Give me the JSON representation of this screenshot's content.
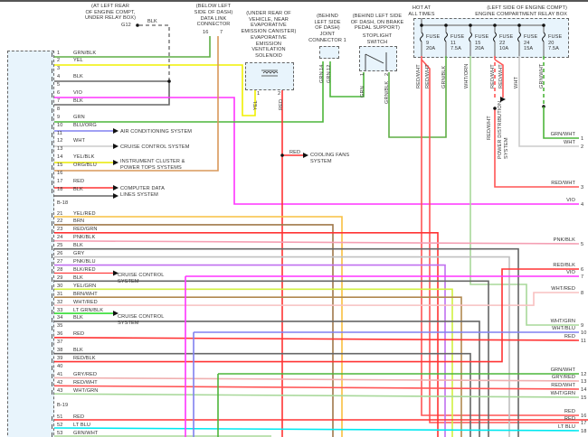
{
  "colors": {
    "GRN": "#4cb53a",
    "GRNBLK": "#5fae45",
    "YEL": "#f0f000",
    "BLK": "#666666",
    "VIO": "#ff33ff",
    "RED": "#ff3333",
    "ORG": "#e8914a",
    "WHT": "#cccccc",
    "BLU": "#8080f0",
    "PNK": "#f4a0b4",
    "BRN": "#a0784a",
    "GRY": "#c0c0c0",
    "LTGRN": "#33dd33",
    "LTBLU": "#00e8f0",
    "WHTGRN": "#a8d89a",
    "REDWHT": "#ff5555",
    "YELRED": "#f8c040",
    "PNKBLU": "#c070f0",
    "YELGRN": "#d0f040",
    "BRNWHT": "#b08850",
    "WHTRED": "#f8c0c0",
    "GRYRED": "#f0b0b0",
    "YELBLK": "#e8e800",
    "ORGBLU": "#d8985a"
  },
  "ground": {
    "location": [
      "(AT LEFT REAR",
      "OF ENGINE COMPT,",
      "UNDER RELAY BOX)"
    ],
    "id": "G12",
    "wire": "BLK"
  },
  "dlc": {
    "location": [
      "(BELOW LEFT",
      "SIDE OF DASH)"
    ],
    "name": [
      "DATA LINK",
      "CONNECTOR"
    ],
    "pins": [
      "16",
      "7"
    ]
  },
  "solenoid": {
    "location": [
      "(UNDER REAR OF",
      "VEHICLE, NEAR",
      "EVAPORATIVE",
      "EMISSION CANISTER)"
    ],
    "name": [
      "EVAPORATIVE",
      "EMISSION",
      "VENTILATION",
      "SOLENOID"
    ],
    "pins": [
      "1",
      "2"
    ],
    "wires": [
      "YEL",
      "RED"
    ]
  },
  "joint": {
    "location": [
      "(BEHIND",
      "LEFT SIDE",
      "OF DASH)"
    ],
    "name": [
      "JOINT",
      "CONNECTOR 1"
    ],
    "pins": [
      "14",
      "12"
    ],
    "wires": [
      "GRN",
      "GRN"
    ]
  },
  "stoplight": {
    "location": [
      "(BEHIND LEFT SIDE",
      "OF DASH, ON BRAKE",
      "PEDAL SUPPORT)"
    ],
    "name": [
      "STOPLIGHT",
      "SWITCH"
    ],
    "pins": [
      "1",
      "2"
    ],
    "wires": [
      "GRN",
      "GRN/BLK"
    ]
  },
  "relaybox": {
    "hot": [
      "HOT AT",
      "ALL TIMES"
    ],
    "location": "(LEFT SIDE OF ENGINE COMPT)",
    "name": "ENGINE COMPARTMENT RELAY BOX",
    "fuses": [
      {
        "label": "FUSE",
        "num": "9",
        "amps": "20A"
      },
      {
        "label": "FUSE",
        "num": "11",
        "amps": "7.5A"
      },
      {
        "label": "FUSE",
        "num": "15",
        "amps": "20A"
      },
      {
        "label": "FUSE",
        "num": "22",
        "amps": "10A"
      },
      {
        "label": "FUSE",
        "num": "24",
        "amps": "15A"
      },
      {
        "label": "FUSE",
        "num": "20",
        "amps": "7.5A"
      }
    ],
    "wires": [
      "RED/WHT",
      "RED/WHT",
      "GRN/BLK",
      "WHT/ORN",
      "RED/WHT",
      "RED/WHT",
      "WHT",
      "GRN/WHT",
      "RED/WHT"
    ],
    "power_dist": [
      "POWER DISTRIBUTION",
      "SYSTEM"
    ]
  },
  "systems": {
    "ac": "AIR CONDITIONING SYSTEM",
    "cruise1": "CRUISE CONTROL SYSTEM",
    "cluster": [
      "INSTRUMENT CLUSTER &",
      "POWER TOPS SYSTEMS"
    ],
    "data": [
      "COMPUTER DATA",
      "LINES SYSTEM"
    ],
    "cooling_wire": "RED",
    "cooling": [
      "COOLING FANS",
      "SYSTEM"
    ],
    "cruise2": [
      "CRUISE CONTROL",
      "SYSTEM"
    ],
    "cruise3": [
      "CRUISE CONTROL",
      "SYSTEM"
    ]
  },
  "left": {
    "connector1": "B-18",
    "connector2": "B-19",
    "rows": [
      {
        "pin": "1",
        "wire": "GRN/BLK"
      },
      {
        "pin": "2",
        "wire": "YEL"
      },
      {
        "pin": "3",
        "wire": ""
      },
      {
        "pin": "4",
        "wire": "BLK"
      },
      {
        "pin": "5",
        "wire": ""
      },
      {
        "pin": "6",
        "wire": "VIO"
      },
      {
        "pin": "7",
        "wire": "BLK"
      },
      {
        "pin": "8",
        "wire": ""
      },
      {
        "pin": "9",
        "wire": "GRN"
      },
      {
        "pin": "10",
        "wire": "BLU/ORG"
      },
      {
        "pin": "11",
        "wire": ""
      },
      {
        "pin": "12",
        "wire": "WHT"
      },
      {
        "pin": "13",
        "wire": ""
      },
      {
        "pin": "14",
        "wire": "YEL/BLK"
      },
      {
        "pin": "15",
        "wire": "ORG/BLU"
      },
      {
        "pin": "16",
        "wire": ""
      },
      {
        "pin": "17",
        "wire": "RED"
      },
      {
        "pin": "18",
        "wire": "BLK"
      },
      {
        "pin": "21",
        "wire": "YEL/RED"
      },
      {
        "pin": "22",
        "wire": "BRN"
      },
      {
        "pin": "23",
        "wire": "RED/GRN"
      },
      {
        "pin": "24",
        "wire": "PNK/BLK"
      },
      {
        "pin": "25",
        "wire": "BLK"
      },
      {
        "pin": "26",
        "wire": "GRY"
      },
      {
        "pin": "27",
        "wire": "PNK/BLU"
      },
      {
        "pin": "28",
        "wire": "BLK/RED"
      },
      {
        "pin": "29",
        "wire": "BLK"
      },
      {
        "pin": "30",
        "wire": "YEL/GRN"
      },
      {
        "pin": "31",
        "wire": "BRN/WHT"
      },
      {
        "pin": "32",
        "wire": "WHT/RED"
      },
      {
        "pin": "33",
        "wire": "LT GRN/BLK"
      },
      {
        "pin": "34",
        "wire": "BLK"
      },
      {
        "pin": "35",
        "wire": ""
      },
      {
        "pin": "36",
        "wire": "RED"
      },
      {
        "pin": "37",
        "wire": ""
      },
      {
        "pin": "38",
        "wire": "BLK"
      },
      {
        "pin": "39",
        "wire": "RED/BLK"
      },
      {
        "pin": "40",
        "wire": ""
      },
      {
        "pin": "41",
        "wire": "GRY/RED"
      },
      {
        "pin": "42",
        "wire": "RED/WHT"
      },
      {
        "pin": "43",
        "wire": "WHT/GRN"
      },
      {
        "pin": "51",
        "wire": "RED"
      },
      {
        "pin": "52",
        "wire": "LT BLU"
      },
      {
        "pin": "53",
        "wire": "GRN/WHT"
      }
    ]
  },
  "right": {
    "rows": [
      {
        "pin": "1",
        "wire": "GRN/WHT"
      },
      {
        "pin": "2",
        "wire": "WHT"
      },
      {
        "pin": "3",
        "wire": "RED/WHT"
      },
      {
        "pin": "4",
        "wire": "VIO"
      },
      {
        "pin": "5",
        "wire": "PNK/BLK"
      },
      {
        "pin": "6",
        "wire": "RED/BLK"
      },
      {
        "pin": "7",
        "wire": "VIO"
      },
      {
        "pin": "8",
        "wire": "WHT/RED"
      },
      {
        "pin": "9",
        "wire": "WHT/GRN"
      },
      {
        "pin": "10",
        "wire": "WHT/BLU"
      },
      {
        "pin": "11",
        "wire": "RED"
      },
      {
        "pin": "12",
        "wire": "GRN/WHT"
      },
      {
        "pin": "13",
        "wire": "GRY/RED"
      },
      {
        "pin": "14",
        "wire": "RED/WHT"
      },
      {
        "pin": "15",
        "wire": "WHT/GRN"
      },
      {
        "pin": "16",
        "wire": "RED"
      },
      {
        "pin": "17",
        "wire": "RED"
      },
      {
        "pin": "18",
        "wire": "LT BLU"
      }
    ]
  }
}
